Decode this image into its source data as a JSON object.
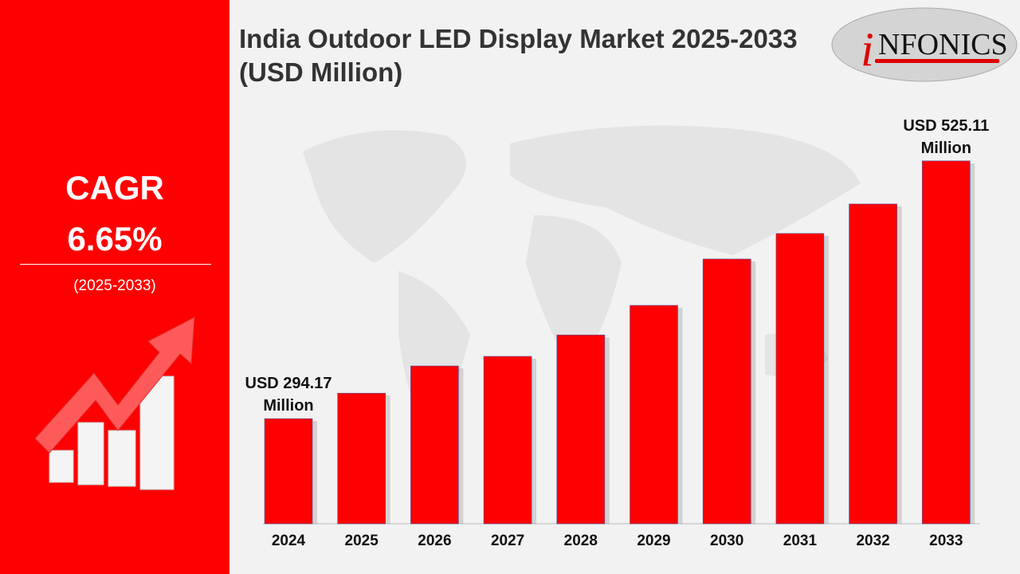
{
  "title": "India Outdoor LED Display Market 2025-2033 (USD Million)",
  "logo_text": "iNFONICS",
  "left_panel": {
    "cagr_label": "CAGR",
    "cagr_value": "6.65%",
    "period": "(2025-2033)",
    "icon": "growth-arrow-bar-chart-icon"
  },
  "colors": {
    "bar": "#ff0000",
    "panel": "#ff0000",
    "background": "#f2f2f2"
  },
  "chart_data": {
    "type": "bar",
    "title": "India Outdoor LED Display Market 2025-2033 (USD Million)",
    "categories": [
      "2024",
      "2025",
      "2026",
      "2027",
      "2028",
      "2029",
      "2030",
      "2031",
      "2032",
      "2033"
    ],
    "values": [
      294.17,
      317.0,
      341.4,
      350.0,
      369.2,
      395.7,
      437.2,
      460.1,
      486.5,
      525.11
    ],
    "annotations": [
      {
        "category": "2024",
        "line1": "USD 294.17",
        "line2": "Million"
      },
      {
        "category": "2033",
        "line1": "USD 525.11",
        "line2": "Million"
      }
    ],
    "xlabel": "",
    "ylabel": "",
    "ylim": [
      200,
      545
    ],
    "grid": false
  }
}
